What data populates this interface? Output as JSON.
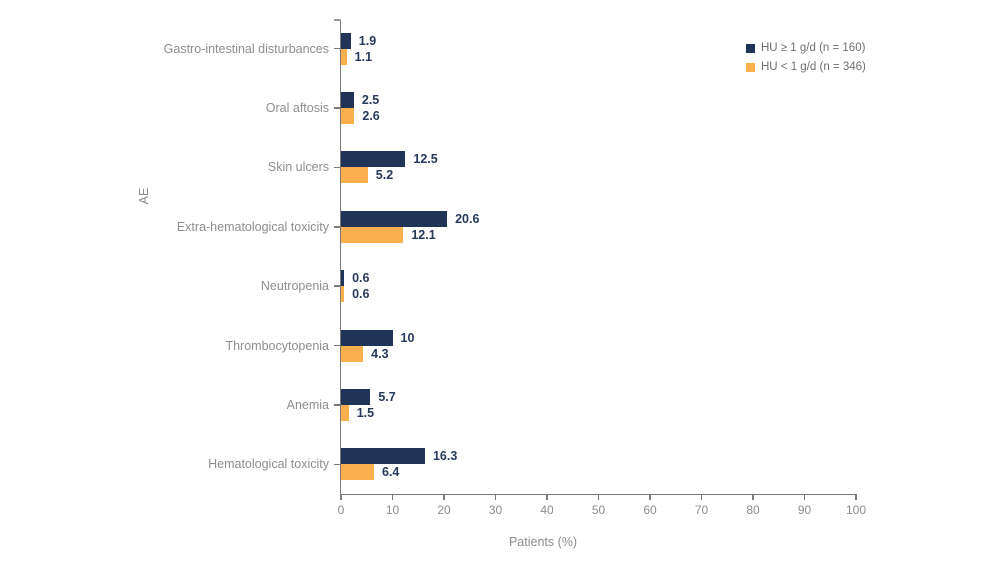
{
  "chart_data": {
    "type": "bar",
    "orientation": "horizontal",
    "title": "",
    "xlabel": "Patients (%)",
    "ylabel": "AE",
    "xlim": [
      0,
      100
    ],
    "xticks": [
      0,
      10,
      20,
      30,
      40,
      50,
      60,
      70,
      80,
      90,
      100
    ],
    "grid": false,
    "legend_position": "top-right",
    "categories": [
      "Gastro-intestinal disturbances",
      "Oral aftosis",
      "Skin ulcers",
      "Extra-hematological toxicity",
      "Neutropenia",
      "Thrombocytopenia",
      "Anemia",
      "Hematological toxicity"
    ],
    "series": [
      {
        "name": "HU ≥ 1 g/d (n = 160)",
        "color": "#203458",
        "values": [
          1.9,
          2.5,
          12.5,
          20.6,
          0.6,
          10,
          5.7,
          16.3
        ],
        "labels": [
          "1.9",
          "2.5",
          "12.5",
          "20.6",
          "0.6",
          "10",
          "5.7",
          "16.3"
        ]
      },
      {
        "name": "HU < 1 g/d (n = 346)",
        "color": "#fbb04d",
        "values": [
          1.1,
          2.6,
          5.2,
          12.1,
          0.6,
          4.3,
          1.5,
          6.4
        ],
        "labels": [
          "1.1",
          "2.6",
          "5.2",
          "12.1",
          "0.6",
          "4.3",
          "1.5",
          "6.4"
        ]
      }
    ],
    "colors": {
      "axis": "#7a7a7a",
      "category_label": "#8e8e8e",
      "tick_label": "#8c8c8c",
      "value_label": "#26395c",
      "legend_text": "#6f6f6f",
      "background": "#ffffff"
    }
  }
}
